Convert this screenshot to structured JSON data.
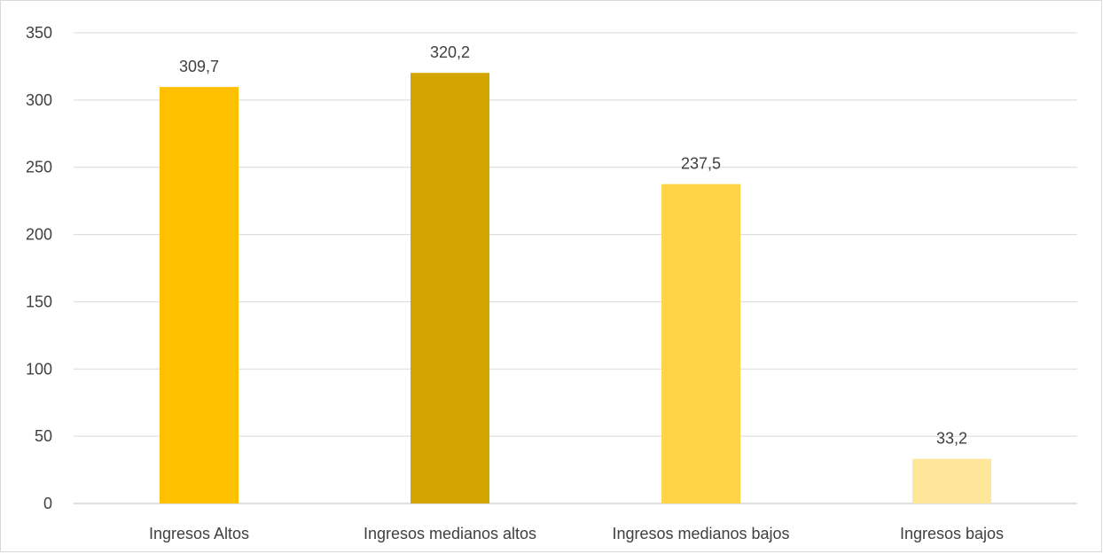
{
  "chart_data": {
    "type": "bar",
    "categories": [
      "Ingresos Altos",
      "Ingresos medianos altos",
      "Ingresos medianos bajos",
      "Ingresos bajos"
    ],
    "values": [
      309.7,
      320.2,
      237.5,
      33.2
    ],
    "data_labels": [
      "309,7",
      "320,2",
      "237,5",
      "33,2"
    ],
    "colors": [
      "#ffc000",
      "#d4a500",
      "#ffd447",
      "#ffe699"
    ],
    "title": "",
    "xlabel": "",
    "ylabel": "",
    "ylim": [
      0,
      350
    ],
    "yticks": [
      0,
      50,
      100,
      150,
      200,
      250,
      300,
      350
    ],
    "grid": true,
    "legend": "none"
  }
}
